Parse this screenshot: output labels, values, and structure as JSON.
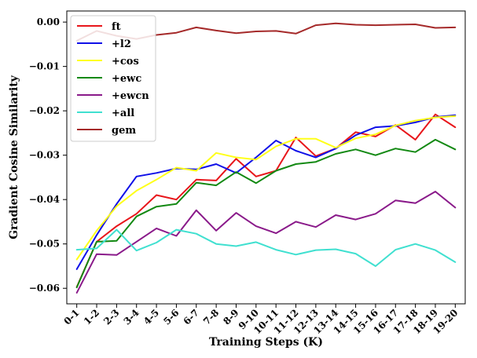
{
  "chart_data": {
    "type": "line",
    "xlabel": "Training Steps (K)",
    "ylabel": "Gradient Cosine Similarity",
    "categories": [
      "0-1",
      "1-2",
      "2-3",
      "3-4",
      "4-5",
      "5-6",
      "6-7",
      "7-8",
      "8-9",
      "9-10",
      "10-11",
      "11-12",
      "12-13",
      "13-14",
      "14-15",
      "15-16",
      "16-17",
      "17-18",
      "18-19",
      "19-20"
    ],
    "ylim": [
      -0.0635,
      0.0025
    ],
    "yticks": [
      -0.06,
      -0.05,
      -0.04,
      -0.03,
      -0.02,
      -0.01,
      0.0
    ],
    "ytick_labels": [
      "−0.06",
      "−0.05",
      "−0.04",
      "−0.03",
      "−0.02",
      "−0.01",
      "0.00"
    ],
    "grid": false,
    "legend_position": "top-left",
    "series": [
      {
        "name": "ft",
        "color": "#e8161b",
        "values": [
          -0.0597,
          -0.0495,
          -0.046,
          -0.0432,
          -0.039,
          -0.04,
          -0.0355,
          -0.0357,
          -0.0308,
          -0.0348,
          -0.0335,
          -0.026,
          -0.0302,
          -0.0285,
          -0.0248,
          -0.0258,
          -0.0232,
          -0.0265,
          -0.0208,
          -0.0237
        ]
      },
      {
        "name": "+l2",
        "color": "#1010e8",
        "values": [
          -0.0557,
          -0.048,
          -0.041,
          -0.0348,
          -0.034,
          -0.033,
          -0.0332,
          -0.032,
          -0.034,
          -0.0305,
          -0.0267,
          -0.029,
          -0.0305,
          -0.0285,
          -0.0255,
          -0.0237,
          -0.0234,
          -0.0226,
          -0.0214,
          -0.021
        ]
      },
      {
        "name": "+cos",
        "color": "#ffff1a",
        "values": [
          -0.0535,
          -0.047,
          -0.0415,
          -0.038,
          -0.0355,
          -0.0328,
          -0.0335,
          -0.0295,
          -0.0305,
          -0.031,
          -0.028,
          -0.0263,
          -0.0263,
          -0.0283,
          -0.0262,
          -0.0253,
          -0.0233,
          -0.0222,
          -0.0215,
          -0.0212
        ]
      },
      {
        "name": "+ewc",
        "color": "#138913",
        "values": [
          -0.0598,
          -0.0495,
          -0.0493,
          -0.0438,
          -0.0416,
          -0.041,
          -0.0362,
          -0.0368,
          -0.0338,
          -0.0363,
          -0.0335,
          -0.032,
          -0.0315,
          -0.0297,
          -0.0287,
          -0.03,
          -0.0285,
          -0.0293,
          -0.0265,
          -0.0287
        ]
      },
      {
        "name": "+ewcn",
        "color": "#8a1a8a",
        "values": [
          -0.061,
          -0.0523,
          -0.0525,
          -0.0495,
          -0.0465,
          -0.0482,
          -0.0424,
          -0.047,
          -0.043,
          -0.046,
          -0.0476,
          -0.045,
          -0.0462,
          -0.0435,
          -0.0445,
          -0.0432,
          -0.0402,
          -0.0408,
          -0.0382,
          -0.0418
        ]
      },
      {
        "name": "+all",
        "color": "#40e0d0",
        "values": [
          -0.0513,
          -0.051,
          -0.0468,
          -0.0515,
          -0.0497,
          -0.0468,
          -0.0477,
          -0.05,
          -0.0505,
          -0.0496,
          -0.0513,
          -0.0524,
          -0.0514,
          -0.0512,
          -0.0522,
          -0.055,
          -0.0513,
          -0.05,
          -0.0514,
          -0.0541
        ]
      },
      {
        "name": "gem",
        "color": "#a52a2a",
        "values": [
          -0.0042,
          -0.002,
          -0.0031,
          -0.0038,
          -0.0029,
          -0.0024,
          -0.0012,
          -0.0019,
          -0.0025,
          -0.0021,
          -0.002,
          -0.0026,
          -0.0007,
          -0.0003,
          -0.0006,
          -0.0007,
          -0.0006,
          -0.0005,
          -0.0013,
          -0.0012
        ]
      }
    ]
  }
}
